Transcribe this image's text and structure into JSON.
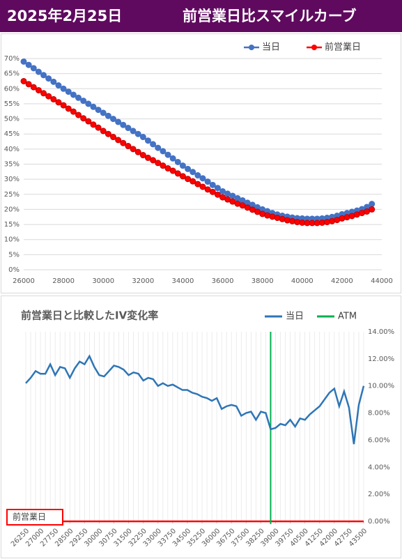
{
  "header": {
    "date": "2025年2月25日",
    "title": "前営業日比スマイルカーブ"
  },
  "chart_data": [
    {
      "type": "line",
      "x": [
        26000,
        26250,
        26500,
        26750,
        27000,
        27250,
        27500,
        27750,
        28000,
        28250,
        28500,
        28750,
        29000,
        29250,
        29500,
        29750,
        30000,
        30250,
        30500,
        30750,
        31000,
        31250,
        31500,
        31750,
        32000,
        32250,
        32500,
        32750,
        33000,
        33250,
        33500,
        33750,
        34000,
        34250,
        34500,
        34750,
        35000,
        35250,
        35500,
        35750,
        36000,
        36250,
        36500,
        36750,
        37000,
        37250,
        37500,
        37750,
        38000,
        38250,
        38500,
        38750,
        39000,
        39250,
        39500,
        39750,
        40000,
        40250,
        40500,
        40750,
        41000,
        41250,
        41500,
        41750,
        42000,
        42250,
        42500,
        42750,
        43000,
        43250,
        43500
      ],
      "series": [
        {
          "name": "当日",
          "color": "#4472c4",
          "values": [
            69,
            67.9,
            66.8,
            65.6,
            64.5,
            63.4,
            62.3,
            61.1,
            60,
            59,
            58,
            57,
            56,
            55,
            54,
            53,
            52,
            51,
            50,
            49,
            48,
            47,
            46,
            45,
            44,
            42.8,
            41.6,
            40.4,
            39.3,
            38.1,
            36.9,
            35.7,
            34.5,
            33.4,
            32.4,
            31.3,
            30.3,
            29.2,
            28.1,
            27.1,
            26,
            25.2,
            24.5,
            23.7,
            23,
            22.2,
            21.5,
            20.7,
            20,
            19.4,
            18.8,
            18.3,
            17.9,
            17.6,
            17.3,
            17.1,
            17,
            16.9,
            16.9,
            16.9,
            17,
            17.2,
            17.5,
            17.9,
            18.4,
            18.8,
            19.2,
            19.6,
            20.1,
            20.8,
            21.8
          ]
        },
        {
          "name": "前営業日",
          "color": "#ff0000",
          "values": [
            62.5,
            61.5,
            60.5,
            59.5,
            58.5,
            57.5,
            56.5,
            55.5,
            54.5,
            53.4,
            52.4,
            51.3,
            50.2,
            49.2,
            48.1,
            47.1,
            46,
            45,
            44,
            43,
            42,
            41,
            40,
            39,
            38,
            37.1,
            36.3,
            35.4,
            34.5,
            33.6,
            32.8,
            31.9,
            31,
            30.1,
            29.3,
            28.4,
            27.5,
            26.6,
            25.8,
            24.9,
            24,
            23.3,
            22.6,
            21.9,
            21.3,
            20.6,
            19.9,
            19.2,
            18.5,
            18,
            17.6,
            17.2,
            16.8,
            16.4,
            16.1,
            15.8,
            15.6,
            15.5,
            15.5,
            15.5,
            15.6,
            15.8,
            16.1,
            16.5,
            17,
            17.4,
            17.8,
            18.3,
            18.8,
            19.3,
            20
          ]
        }
      ],
      "xlim": [
        26000,
        44000
      ],
      "xticks": [
        26000,
        28000,
        30000,
        32000,
        34000,
        36000,
        38000,
        40000,
        42000,
        44000
      ],
      "ylim": [
        0,
        70
      ],
      "yticks": [
        {
          "value": 0,
          "label": "0%"
        },
        {
          "value": 5,
          "label": "5%"
        },
        {
          "value": 10,
          "label": "10%"
        },
        {
          "value": 15,
          "label": "15%"
        },
        {
          "value": 20,
          "label": "20%"
        },
        {
          "value": 25,
          "label": "25%"
        },
        {
          "value": 30,
          "label": "30%"
        },
        {
          "value": 35,
          "label": "35%"
        },
        {
          "value": 40,
          "label": "40%"
        },
        {
          "value": 45,
          "label": "45%"
        },
        {
          "value": 50,
          "label": "50%"
        },
        {
          "value": 55,
          "label": "55%"
        },
        {
          "value": 60,
          "label": "60%"
        },
        {
          "value": 65,
          "label": "65%"
        },
        {
          "value": 70,
          "label": "70%"
        }
      ],
      "grid": true,
      "legend": "top-right"
    },
    {
      "type": "line",
      "title": "前営業日と比較したIV変化率",
      "x": [
        26250,
        26500,
        26750,
        27000,
        27250,
        27500,
        27750,
        28000,
        28250,
        28500,
        28750,
        29000,
        29250,
        29500,
        29750,
        30000,
        30250,
        30500,
        30750,
        31000,
        31250,
        31500,
        31750,
        32000,
        32250,
        32500,
        32750,
        33000,
        33250,
        33500,
        33750,
        34000,
        34250,
        34500,
        34750,
        35000,
        35250,
        35500,
        35750,
        36000,
        36250,
        36500,
        36750,
        37000,
        37250,
        37500,
        37750,
        38000,
        38250,
        38500,
        38750,
        39000,
        39250,
        39500,
        39750,
        40000,
        40250,
        40500,
        40750,
        41000,
        41250,
        41500,
        41750,
        42000,
        42250,
        42500,
        42750,
        43000,
        43250,
        43500
      ],
      "series": [
        {
          "name": "当日",
          "color": "#2e75b6",
          "values": [
            10.2,
            10.6,
            11.1,
            10.9,
            10.9,
            11.6,
            10.8,
            11.4,
            11.3,
            10.6,
            11.3,
            11.8,
            11.6,
            12.2,
            11.4,
            10.8,
            10.7,
            11.1,
            11.5,
            11.4,
            11.2,
            10.8,
            11.0,
            10.9,
            10.4,
            10.6,
            10.5,
            10.0,
            10.2,
            10.0,
            10.1,
            9.9,
            9.7,
            9.7,
            9.5,
            9.4,
            9.2,
            9.1,
            8.9,
            9.1,
            8.3,
            8.5,
            8.6,
            8.5,
            7.8,
            8.0,
            8.1,
            7.5,
            8.1,
            8.0,
            6.8,
            6.9,
            7.2,
            7.1,
            7.5,
            7.0,
            7.6,
            7.5,
            7.9,
            8.2,
            8.5,
            9.0,
            9.5,
            9.8,
            8.5,
            9.6,
            8.4,
            5.7,
            8.6,
            10.0
          ]
        }
      ],
      "atm": {
        "name": "ATM",
        "x": 38750,
        "color": "#00b050"
      },
      "baseline": {
        "label": "前営業日",
        "value": 0,
        "color": "#ff0000"
      },
      "xlim": [
        26250,
        43500
      ],
      "xticks": [
        26250,
        27000,
        27750,
        28500,
        29250,
        30000,
        30750,
        31500,
        32250,
        33000,
        33750,
        34500,
        35250,
        36000,
        36750,
        37500,
        38250,
        39000,
        39750,
        40500,
        41250,
        42000,
        42750,
        43500
      ],
      "ylim": [
        0,
        14
      ],
      "yticks": [
        {
          "value": 0,
          "label": "0.00%"
        },
        {
          "value": 2,
          "label": "2.00%"
        },
        {
          "value": 4,
          "label": "4.00%"
        },
        {
          "value": 6,
          "label": "6.00%"
        },
        {
          "value": 8,
          "label": "8.00%"
        },
        {
          "value": 10,
          "label": "10.00%"
        },
        {
          "value": 12,
          "label": "12.00%"
        },
        {
          "value": 14,
          "label": "14.00%"
        }
      ],
      "legend": "top-right"
    }
  ]
}
